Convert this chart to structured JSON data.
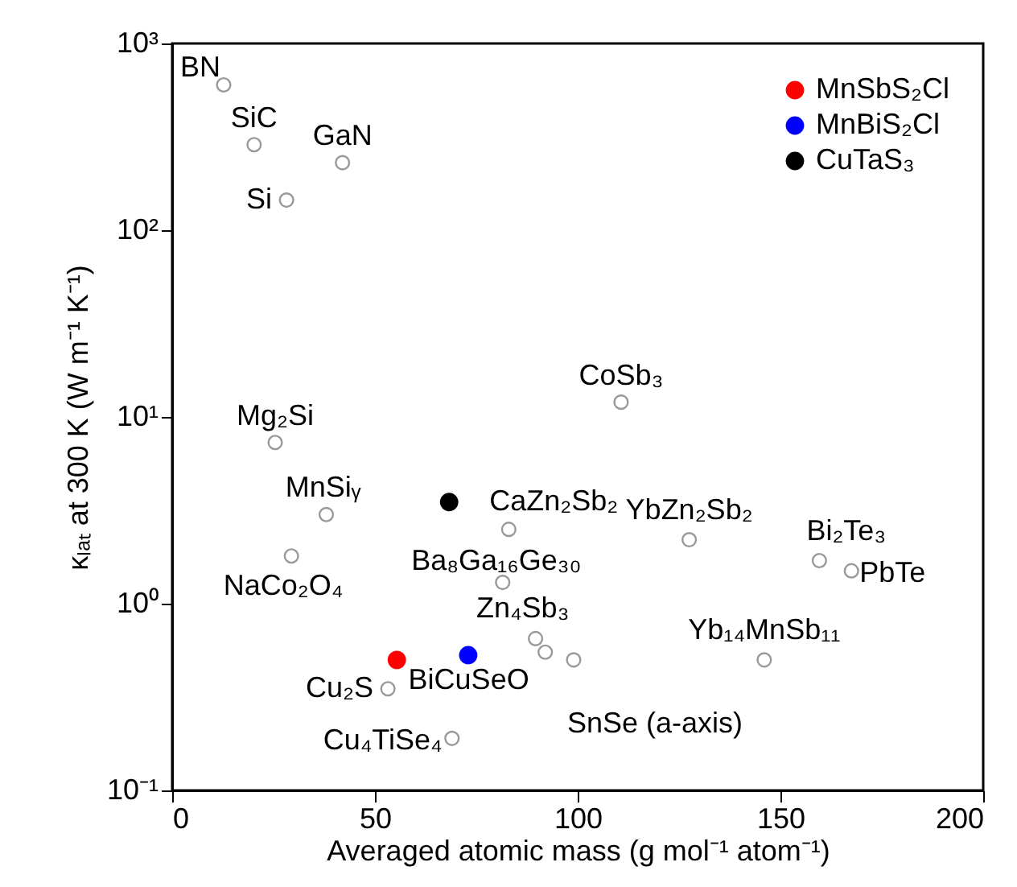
{
  "chart_data": {
    "type": "scatter",
    "xlabel": "Averaged atomic mass (g mol⁻¹ atom⁻¹)",
    "ylabel": "κₗₐₜ at 300 K (W m⁻¹ K⁻¹)",
    "xlim": [
      0,
      200
    ],
    "xticks": [
      0,
      50,
      100,
      150,
      200
    ],
    "ylim": [
      0.1,
      1000
    ],
    "yticks": [
      {
        "value": 0.1,
        "label": "10⁻¹"
      },
      {
        "value": 1,
        "label": "10⁰"
      },
      {
        "value": 10,
        "label": "10¹"
      },
      {
        "value": 100,
        "label": "10²"
      },
      {
        "value": 1000,
        "label": "10³"
      }
    ],
    "log": "y",
    "marker": "circle",
    "legend": "top right",
    "grid": false,
    "series": [
      {
        "color": "#999999",
        "x": [
          12.7,
          20.2,
          42,
          28.2,
          25.4,
          110.7,
          38,
          29.4,
          83,
          81.5,
          127.5,
          159.6,
          167.5,
          89.6,
          92,
          99,
          146,
          53.2,
          69
        ],
        "values": [
          600,
          287,
          230,
          145,
          7.3,
          12,
          3.0,
          1.8,
          2.5,
          1.3,
          2.2,
          1.7,
          1.5,
          0.65,
          0.55,
          0.5,
          0.5,
          0.35,
          0.19
        ]
      },
      {
        "name": "MnSbS₂Cl",
        "color": "#ff0000",
        "x": [
          55.4
        ],
        "values": [
          0.5
        ]
      },
      {
        "name": "MnBiS₂Cl",
        "color": "#0000ff",
        "x": [
          73
        ],
        "values": [
          0.53
        ]
      },
      {
        "name": "CuTaS₃",
        "color": "#000000",
        "x": [
          68.3
        ],
        "values": [
          3.5
        ]
      }
    ],
    "annotations": [
      {
        "text": "BN",
        "x": 12.7,
        "y": 600
      },
      {
        "text": "SiC",
        "x": 20.2,
        "y": 287
      },
      {
        "text": "GaN",
        "x": 42,
        "y": 230
      },
      {
        "text": "Si",
        "x": 28.2,
        "y": 145
      },
      {
        "text": "Mg₂Si",
        "x": 25.4,
        "y": 7.3
      },
      {
        "text": "CoSb₃",
        "x": 110.7,
        "y": 12
      },
      {
        "text": "MnSiᵧ",
        "x": 38,
        "y": 3.0
      },
      {
        "text": "NaCo₂O₄",
        "x": 29.4,
        "y": 1.8
      },
      {
        "text": "CaZn₂Sb₂",
        "x": 83,
        "y": 2.5
      },
      {
        "text": "Ba₈Ga₁₆Ge₃₀",
        "x": 81.5,
        "y": 1.3
      },
      {
        "text": "YbZn₂Sb₂",
        "x": 127.5,
        "y": 2.2
      },
      {
        "text": "Bi₂Te₃",
        "x": 159.6,
        "y": 1.7
      },
      {
        "text": "PbTe",
        "x": 167.5,
        "y": 1.5
      },
      {
        "text": "Zn₄Sb₃",
        "x": 89.6,
        "y": 0.65
      },
      {
        "text": "BiCuSeO",
        "x": 92,
        "y": 0.55
      },
      {
        "text": "SnSe (a-axis)",
        "x": 99,
        "y": 0.5
      },
      {
        "text": "Yb₁₄MnSb₁₁",
        "x": 146,
        "y": 0.5
      },
      {
        "text": "Cu₂S",
        "x": 53.2,
        "y": 0.35
      },
      {
        "text": "Cu₄TiSe₄",
        "x": 69,
        "y": 0.19
      }
    ]
  }
}
